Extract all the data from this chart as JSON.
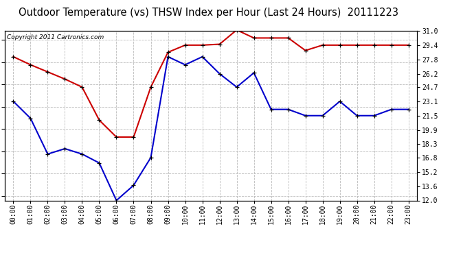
{
  "title": "Outdoor Temperature (vs) THSW Index per Hour (Last 24 Hours)  20111223",
  "copyright": "Copyright 2011 Cartronics.com",
  "hours": [
    "00:00",
    "01:00",
    "02:00",
    "03:00",
    "04:00",
    "05:00",
    "06:00",
    "07:00",
    "08:00",
    "09:00",
    "10:00",
    "11:00",
    "12:00",
    "13:00",
    "14:00",
    "15:00",
    "16:00",
    "17:00",
    "18:00",
    "19:00",
    "20:00",
    "21:00",
    "22:00",
    "23:00"
  ],
  "red_data": [
    28.1,
    27.2,
    26.4,
    25.6,
    24.7,
    21.0,
    19.1,
    19.1,
    24.7,
    28.6,
    29.4,
    29.4,
    29.5,
    31.1,
    30.2,
    30.2,
    30.2,
    28.8,
    29.4,
    29.4,
    29.4,
    29.4,
    29.4,
    29.4
  ],
  "blue_data": [
    23.1,
    21.2,
    17.2,
    17.8,
    17.2,
    16.2,
    12.0,
    13.7,
    16.8,
    28.1,
    27.2,
    28.1,
    26.2,
    24.7,
    26.3,
    22.2,
    22.2,
    21.5,
    21.5,
    23.1,
    21.5,
    21.5,
    22.2,
    22.2
  ],
  "ylim": [
    12.0,
    31.0
  ],
  "yticks": [
    12.0,
    13.6,
    15.2,
    16.8,
    18.3,
    19.9,
    21.5,
    23.1,
    24.7,
    26.2,
    27.8,
    29.4,
    31.0
  ],
  "bg_color": "#ffffff",
  "grid_color": "#bbbbbb",
  "red_color": "#cc0000",
  "blue_color": "#0000cc",
  "title_fontsize": 10.5,
  "copyright_fontsize": 6.5,
  "tick_fontsize": 7
}
